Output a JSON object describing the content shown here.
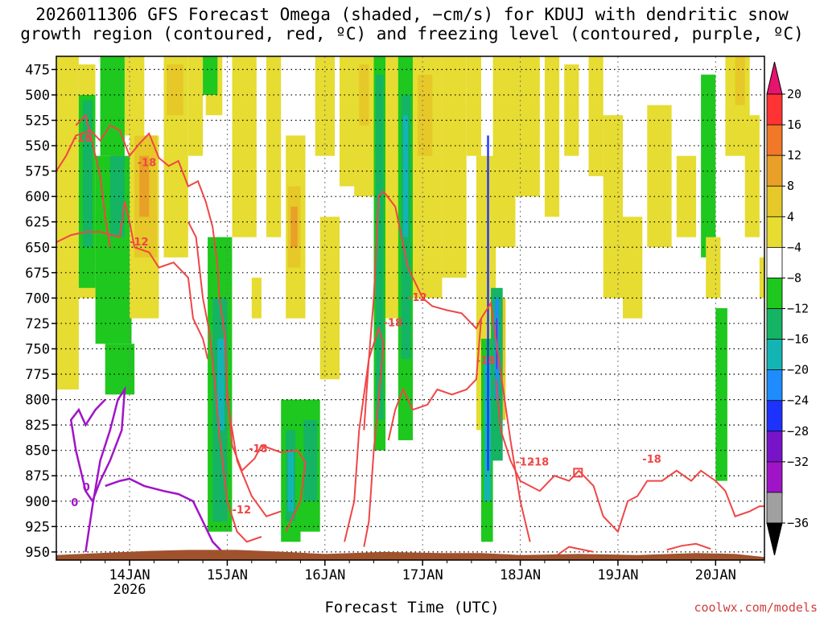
{
  "chart_data": {
    "type": "heatmap",
    "title_line1": "2026011306 GFS Forecast Omega (shaded, −cm/s) for KDUJ with dendritic snow",
    "title_line2": "growth region (contoured, red, ºC) and freezing level (contoured, purple, ºC)",
    "xlabel": "Forecast Time (UTC)",
    "ylabel": "",
    "y_axis": {
      "ticks": [
        475,
        500,
        525,
        550,
        575,
        600,
        625,
        650,
        675,
        700,
        725,
        750,
        775,
        800,
        825,
        850,
        875,
        900,
        925,
        950
      ],
      "range": [
        462,
        958
      ],
      "inverted": true
    },
    "x_axis": {
      "ticks": [
        "14JAN",
        "15JAN",
        "16JAN",
        "17JAN",
        "18JAN",
        "19JAN",
        "20JAN"
      ],
      "sub_label": "2026",
      "range_days": [
        -0.75,
        6.5
      ]
    },
    "colorbar": {
      "labels": [
        "20",
        "16",
        "12",
        "8",
        "4",
        "−4",
        "−8",
        "−12",
        "−16",
        "−20",
        "−24",
        "−28",
        "−32",
        "−36"
      ],
      "colors": [
        "#ff3333",
        "#f07828",
        "#e8a028",
        "#e6c828",
        "#e6dc32",
        "#ffffff",
        "#1ec81e",
        "#14b464",
        "#14b4b4",
        "#1e8cff",
        "#1e32ff",
        "#7814c8",
        "#a014c8",
        "#a0a0a0"
      ],
      "top_triangle": "#e6146e",
      "bottom_triangle": "#000000"
    },
    "annotations": {
      "red_labels": [
        "-18",
        "-18",
        "-12",
        "-12",
        "-18",
        "-18",
        "-12",
        "-18",
        "-12",
        "-18",
        "-18",
        "-12"
      ],
      "purple_labels": [
        "0",
        "0"
      ]
    },
    "colors": {
      "red_contour": "#f04646",
      "purple_contour": "#a014c8",
      "terrain": "#a0522d",
      "grid": "#000000"
    }
  },
  "credit": "coolwx.com/models"
}
